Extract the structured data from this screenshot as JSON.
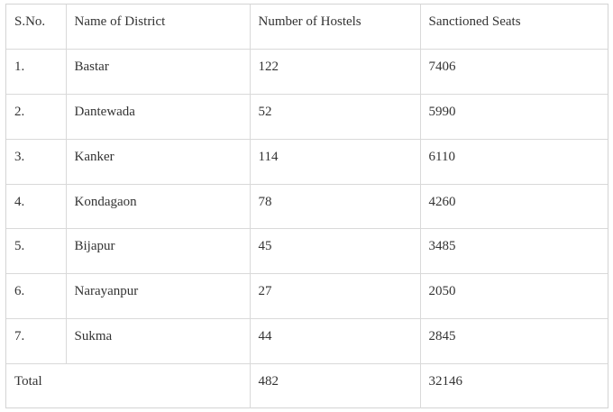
{
  "table": {
    "headers": [
      "S.No.",
      "Name of District",
      "Number of Hostels",
      "Sanctioned Seats"
    ],
    "rows": [
      {
        "sno": "1.",
        "district": "Bastar",
        "hostels": "122",
        "seats": "7406"
      },
      {
        "sno": "2.",
        "district": "Dantewada",
        "hostels": "52",
        "seats": "5990"
      },
      {
        "sno": "3.",
        "district": "Kanker",
        "hostels": "114",
        "seats": "6110"
      },
      {
        "sno": "4.",
        "district": "Kondagaon",
        "hostels": "78",
        "seats": "4260"
      },
      {
        "sno": "5.",
        "district": "Bijapur",
        "hostels": "45",
        "seats": "3485"
      },
      {
        "sno": "6.",
        "district": "Narayanpur",
        "hostels": "27",
        "seats": "2050"
      },
      {
        "sno": "7.",
        "district": "Sukma",
        "hostels": "44",
        "seats": "2845"
      }
    ],
    "total": {
      "label": "Total",
      "hostels": "482",
      "seats": "32146"
    }
  }
}
